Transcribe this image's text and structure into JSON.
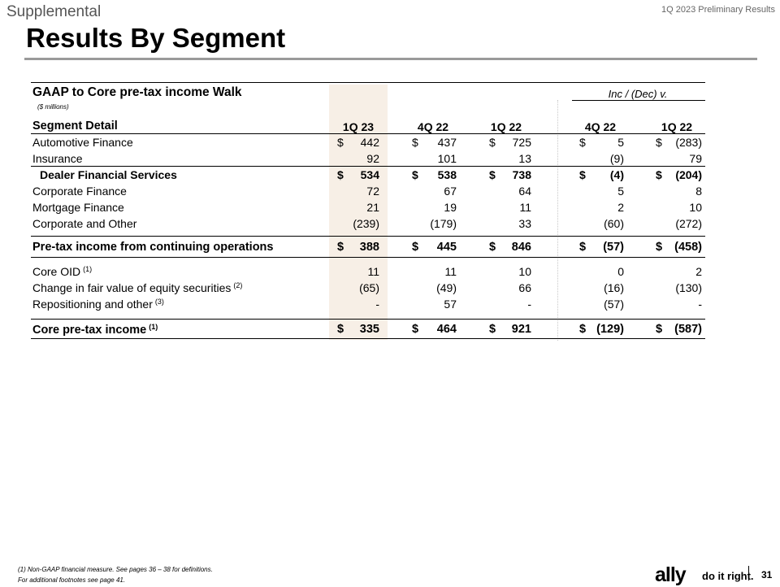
{
  "header": {
    "section": "Supplemental",
    "report": "1Q 2023 Preliminary Results",
    "title": "Results By Segment"
  },
  "table": {
    "title": "GAAP to Core pre-tax income Walk",
    "units": "($ millions)",
    "comparison_label": "Inc / (Dec) v.",
    "row_header": "Segment Detail",
    "columns": [
      "1Q 23",
      "4Q 22",
      "1Q 22",
      "4Q 22",
      "1Q 22"
    ],
    "rows": [
      {
        "label": "Automotive Finance",
        "cells": [
          "442",
          "437",
          "725",
          "5",
          "(283)"
        ],
        "dollar": [
          true,
          true,
          true,
          true,
          true
        ]
      },
      {
        "label": "Insurance",
        "cells": [
          "92",
          "101",
          "13",
          "(9)",
          "79"
        ]
      },
      {
        "label": "Dealer Financial Services",
        "cells": [
          "534",
          "538",
          "738",
          "(4)",
          "(204)"
        ],
        "dollar": [
          true,
          true,
          true,
          true,
          true
        ]
      },
      {
        "label": "Corporate Finance",
        "cells": [
          "72",
          "67",
          "64",
          "5",
          "8"
        ]
      },
      {
        "label": "Mortgage Finance",
        "cells": [
          "21",
          "19",
          "11",
          "2",
          "10"
        ]
      },
      {
        "label": "Corporate and Other",
        "cells": [
          "(239)",
          "(179)",
          "33",
          "(60)",
          "(272)"
        ]
      },
      {
        "label": "Pre-tax income from continuing operations",
        "cells": [
          "388",
          "445",
          "846",
          "(57)",
          "(458)"
        ],
        "dollar": [
          true,
          true,
          true,
          true,
          true
        ]
      },
      {
        "label": "Core OID",
        "sup": "(1)",
        "cells": [
          "11",
          "11",
          "10",
          "0",
          "2"
        ]
      },
      {
        "label": "Change in fair value of equity securities",
        "sup": "(2)",
        "cells": [
          "(65)",
          "(49)",
          "66",
          "(16)",
          "(130)"
        ]
      },
      {
        "label": "Repositioning and other",
        "sup": "(3)",
        "cells": [
          "-",
          "57",
          "-",
          "(57)",
          "-"
        ]
      },
      {
        "label": "Core pre-tax income",
        "sup": "(1)",
        "cells": [
          "335",
          "464",
          "921",
          "(129)",
          "(587)"
        ],
        "dollar": [
          true,
          true,
          true,
          true,
          true
        ]
      }
    ],
    "currency_symbol": "$"
  },
  "footnotes": {
    "note1": "(1)     Non-GAAP financial measure. See pages 36 – 38 for definitions.",
    "note2": "For additional footnotes see page 41."
  },
  "footer": {
    "logo": "ally",
    "tagline": "do it right.",
    "page": "31"
  },
  "colors": {
    "shade": "#f7efe6",
    "rule": "#9a9a9a"
  }
}
